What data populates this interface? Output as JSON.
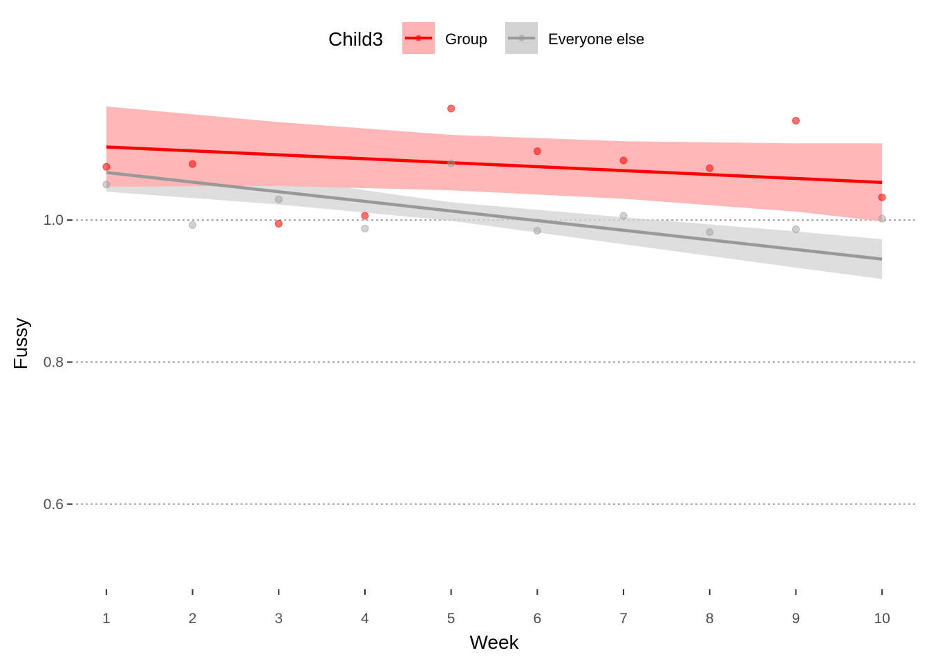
{
  "chart_data": {
    "type": "line",
    "xlabel": "Week",
    "ylabel": "Fussy",
    "xlim": [
      0.6,
      10.4
    ],
    "ylim": [
      0.48,
      1.195
    ],
    "x_ticks": [
      1,
      2,
      3,
      4,
      5,
      6,
      7,
      8,
      9,
      10
    ],
    "x_tick_labels": [
      "1",
      "2",
      "3",
      "4",
      "5",
      "6",
      "7",
      "8",
      "9",
      "10"
    ],
    "y_ticks": [
      0.6,
      0.8,
      1.0
    ],
    "y_tick_labels": [
      "0.6",
      "0.8",
      "1.0"
    ],
    "grid": "horizontal dotted",
    "legend": {
      "title": "Child3",
      "position": "top",
      "entries": [
        "Group",
        "Everyone else"
      ]
    },
    "series": [
      {
        "name": "Group",
        "color": "#ff0000",
        "band_color": "#ffb3b3",
        "points": [
          {
            "x": 1,
            "y": 1.075
          },
          {
            "x": 2,
            "y": 1.079
          },
          {
            "x": 3,
            "y": 0.995
          },
          {
            "x": 4,
            "y": 1.006
          },
          {
            "x": 5,
            "y": 1.157
          },
          {
            "x": 6,
            "y": 1.097
          },
          {
            "x": 7,
            "y": 1.084
          },
          {
            "x": 8,
            "y": 1.073
          },
          {
            "x": 9,
            "y": 1.14
          },
          {
            "x": 10,
            "y": 1.032
          }
        ],
        "fit": {
          "x": [
            1,
            10
          ],
          "y": [
            1.103,
            1.053
          ]
        },
        "ci": {
          "x": [
            1,
            3,
            5,
            7,
            9,
            10
          ],
          "lower": [
            1.047,
            1.048,
            1.042,
            1.03,
            1.012,
            0.998
          ],
          "upper": [
            1.16,
            1.138,
            1.12,
            1.111,
            1.108,
            1.108
          ]
        }
      },
      {
        "name": "Everyone else",
        "color": "#999999",
        "band_color": "#d3d3d3",
        "points": [
          {
            "x": 1,
            "y": 1.05
          },
          {
            "x": 2,
            "y": 0.993
          },
          {
            "x": 3,
            "y": 1.029
          },
          {
            "x": 4,
            "y": 0.988
          },
          {
            "x": 5,
            "y": 1.08
          },
          {
            "x": 6,
            "y": 0.985
          },
          {
            "x": 7,
            "y": 1.006
          },
          {
            "x": 8,
            "y": 0.983
          },
          {
            "x": 9,
            "y": 0.987
          },
          {
            "x": 10,
            "y": 1.002
          }
        ],
        "fit": {
          "x": [
            1,
            10
          ],
          "y": [
            1.067,
            0.945
          ]
        },
        "ci": {
          "x": [
            1,
            3,
            5,
            7,
            9,
            10
          ],
          "lower": [
            1.04,
            1.022,
            0.999,
            0.966,
            0.933,
            0.917
          ],
          "upper": [
            1.094,
            1.059,
            1.025,
            1.004,
            0.984,
            0.973
          ]
        }
      }
    ]
  }
}
